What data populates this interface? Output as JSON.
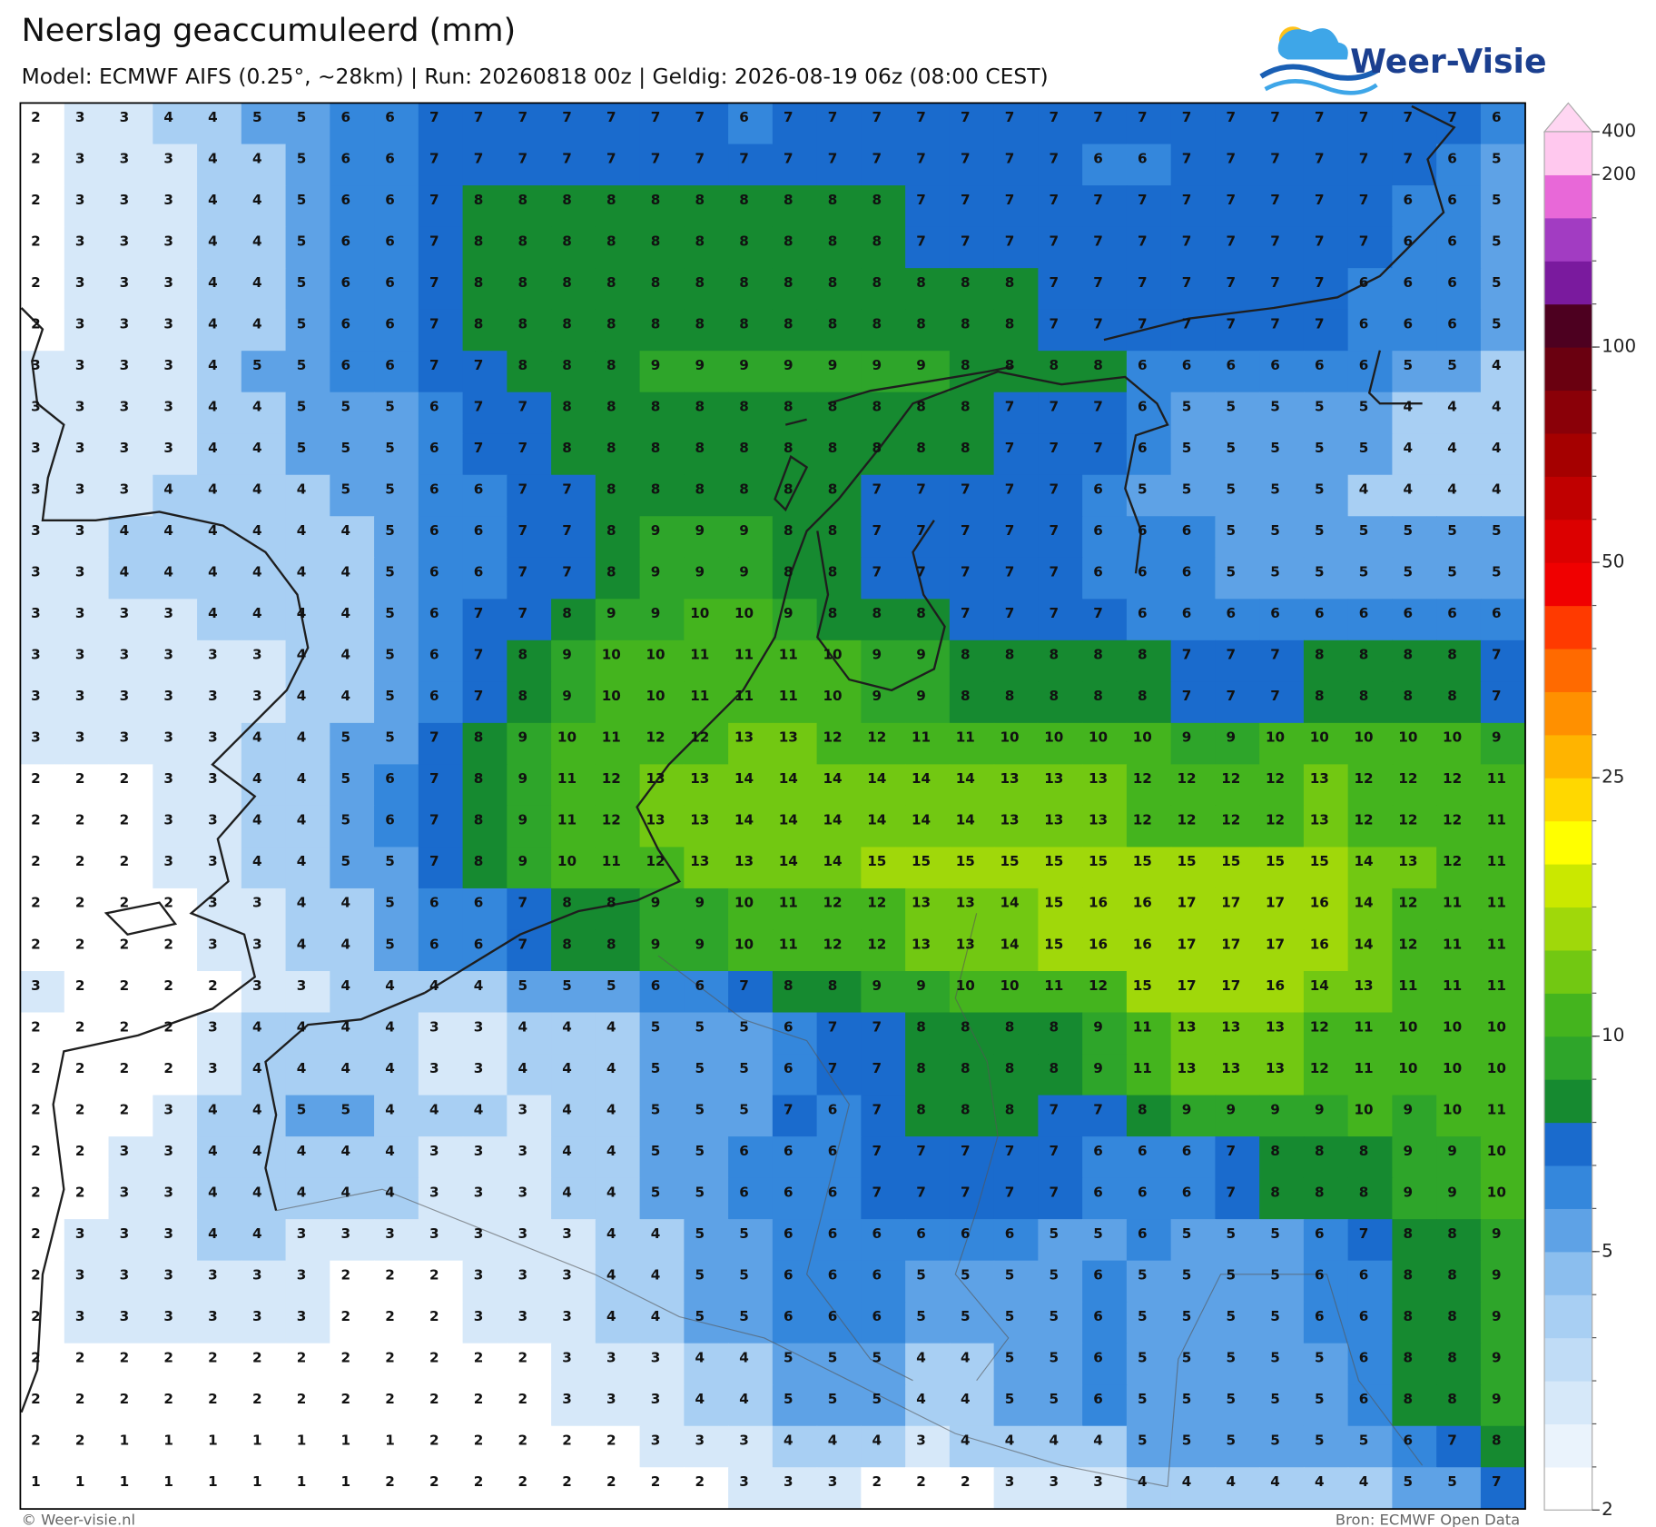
{
  "header": {
    "title": "Neerslag geaccumuleerd (mm)",
    "subtitle": "Model: ECMWF AIFS (0.25°, ~28km)  |  Run: 20260818 00z  |  Geldig: 2026-08-19 06z (08:00 CEST)",
    "logo": "Weer-Visie"
  },
  "map": {
    "grid": [
      [
        2,
        3,
        3,
        4,
        4,
        5,
        5,
        6,
        6,
        7,
        7,
        7,
        7,
        7,
        7,
        7,
        6,
        7,
        7,
        7,
        7,
        7,
        7,
        7,
        7,
        7,
        7,
        7,
        7,
        7,
        7,
        7,
        7,
        6
      ],
      [
        2,
        3,
        3,
        3,
        4,
        4,
        5,
        6,
        6,
        7,
        7,
        7,
        7,
        7,
        7,
        7,
        7,
        7,
        7,
        7,
        7,
        7,
        7,
        7,
        6,
        6,
        7,
        7,
        7,
        7,
        7,
        7,
        6,
        5
      ],
      [
        2,
        3,
        3,
        3,
        4,
        4,
        5,
        6,
        6,
        7,
        8,
        8,
        8,
        8,
        8,
        8,
        8,
        8,
        8,
        8,
        7,
        7,
        7,
        7,
        7,
        7,
        7,
        7,
        7,
        7,
        7,
        6,
        6,
        5
      ],
      [
        2,
        3,
        3,
        3,
        4,
        4,
        5,
        6,
        6,
        7,
        8,
        8,
        8,
        8,
        8,
        8,
        8,
        8,
        8,
        8,
        7,
        7,
        7,
        7,
        7,
        7,
        7,
        7,
        7,
        7,
        7,
        6,
        6,
        5
      ],
      [
        2,
        3,
        3,
        3,
        4,
        4,
        5,
        6,
        6,
        7,
        8,
        8,
        8,
        8,
        8,
        8,
        8,
        8,
        8,
        8,
        8,
        8,
        8,
        7,
        7,
        7,
        7,
        7,
        7,
        7,
        6,
        6,
        6,
        5
      ],
      [
        2,
        3,
        3,
        3,
        4,
        4,
        5,
        6,
        6,
        7,
        8,
        8,
        8,
        8,
        8,
        8,
        8,
        8,
        8,
        8,
        8,
        8,
        8,
        7,
        7,
        7,
        7,
        7,
        7,
        7,
        6,
        6,
        6,
        5
      ],
      [
        3,
        3,
        3,
        3,
        4,
        5,
        5,
        6,
        6,
        7,
        7,
        8,
        8,
        8,
        9,
        9,
        9,
        9,
        9,
        9,
        9,
        8,
        8,
        8,
        8,
        6,
        6,
        6,
        6,
        6,
        6,
        5,
        5,
        4
      ],
      [
        3,
        3,
        3,
        3,
        4,
        4,
        5,
        5,
        5,
        6,
        7,
        7,
        8,
        8,
        8,
        8,
        8,
        8,
        8,
        8,
        8,
        8,
        7,
        7,
        7,
        6,
        5,
        5,
        5,
        5,
        5,
        4,
        4,
        4
      ],
      [
        3,
        3,
        3,
        3,
        4,
        4,
        5,
        5,
        5,
        6,
        7,
        7,
        8,
        8,
        8,
        8,
        8,
        8,
        8,
        8,
        8,
        8,
        7,
        7,
        7,
        6,
        5,
        5,
        5,
        5,
        5,
        4,
        4,
        4
      ],
      [
        3,
        3,
        3,
        4,
        4,
        4,
        4,
        5,
        5,
        6,
        6,
        7,
        7,
        8,
        8,
        8,
        8,
        8,
        8,
        7,
        7,
        7,
        7,
        7,
        6,
        5,
        5,
        5,
        5,
        5,
        4,
        4,
        4,
        4
      ],
      [
        3,
        3,
        4,
        4,
        4,
        4,
        4,
        4,
        5,
        6,
        6,
        7,
        7,
        8,
        9,
        9,
        9,
        8,
        8,
        7,
        7,
        7,
        7,
        7,
        6,
        6,
        6,
        5,
        5,
        5,
        5,
        5,
        5,
        5
      ],
      [
        3,
        3,
        4,
        4,
        4,
        4,
        4,
        4,
        5,
        6,
        6,
        7,
        7,
        8,
        9,
        9,
        9,
        8,
        8,
        7,
        7,
        7,
        7,
        7,
        6,
        6,
        6,
        5,
        5,
        5,
        5,
        5,
        5,
        5
      ],
      [
        3,
        3,
        3,
        3,
        4,
        4,
        4,
        4,
        5,
        6,
        7,
        7,
        8,
        9,
        9,
        10,
        10,
        9,
        8,
        8,
        8,
        7,
        7,
        7,
        7,
        6,
        6,
        6,
        6,
        6,
        6,
        6,
        6,
        6
      ],
      [
        3,
        3,
        3,
        3,
        3,
        3,
        4,
        4,
        5,
        6,
        7,
        8,
        9,
        10,
        10,
        11,
        11,
        11,
        10,
        9,
        9,
        8,
        8,
        8,
        8,
        8,
        7,
        7,
        7,
        8,
        8,
        8,
        8,
        7
      ],
      [
        3,
        3,
        3,
        3,
        3,
        3,
        4,
        4,
        5,
        6,
        7,
        8,
        9,
        10,
        10,
        11,
        11,
        11,
        10,
        9,
        9,
        8,
        8,
        8,
        8,
        8,
        7,
        7,
        7,
        8,
        8,
        8,
        8,
        7
      ],
      [
        3,
        3,
        3,
        3,
        3,
        4,
        4,
        5,
        5,
        7,
        8,
        9,
        10,
        11,
        12,
        12,
        13,
        13,
        12,
        12,
        11,
        11,
        10,
        10,
        10,
        10,
        9,
        9,
        10,
        10,
        10,
        10,
        10,
        9
      ],
      [
        2,
        2,
        2,
        3,
        3,
        4,
        4,
        5,
        6,
        7,
        8,
        9,
        11,
        12,
        13,
        13,
        14,
        14,
        14,
        14,
        14,
        14,
        13,
        13,
        13,
        12,
        12,
        12,
        12,
        13,
        12,
        12,
        12,
        11
      ],
      [
        2,
        2,
        2,
        3,
        3,
        4,
        4,
        5,
        6,
        7,
        8,
        9,
        11,
        12,
        13,
        13,
        14,
        14,
        14,
        14,
        14,
        14,
        13,
        13,
        13,
        12,
        12,
        12,
        12,
        13,
        12,
        12,
        12,
        11
      ],
      [
        2,
        2,
        2,
        3,
        3,
        4,
        4,
        5,
        5,
        7,
        8,
        9,
        10,
        11,
        12,
        13,
        13,
        14,
        14,
        15,
        15,
        15,
        15,
        15,
        15,
        15,
        15,
        15,
        15,
        15,
        14,
        13,
        12,
        11
      ],
      [
        2,
        2,
        2,
        2,
        3,
        3,
        4,
        4,
        5,
        6,
        6,
        7,
        8,
        8,
        9,
        9,
        10,
        11,
        12,
        12,
        13,
        13,
        14,
        15,
        16,
        16,
        17,
        17,
        17,
        16,
        14,
        12,
        11,
        11
      ],
      [
        2,
        2,
        2,
        2,
        3,
        3,
        4,
        4,
        5,
        6,
        6,
        7,
        8,
        8,
        9,
        9,
        10,
        11,
        12,
        12,
        13,
        13,
        14,
        15,
        16,
        16,
        17,
        17,
        17,
        16,
        14,
        12,
        11,
        11
      ],
      [
        3,
        2,
        2,
        2,
        2,
        3,
        3,
        4,
        4,
        4,
        4,
        5,
        5,
        5,
        6,
        6,
        7,
        8,
        8,
        9,
        9,
        10,
        10,
        11,
        12,
        15,
        17,
        17,
        16,
        14,
        13,
        11,
        11,
        11
      ],
      [
        2,
        2,
        2,
        2,
        3,
        4,
        4,
        4,
        4,
        3,
        3,
        4,
        4,
        4,
        5,
        5,
        5,
        6,
        7,
        7,
        8,
        8,
        8,
        8,
        9,
        11,
        13,
        13,
        13,
        12,
        11,
        10,
        10,
        10
      ],
      [
        2,
        2,
        2,
        2,
        3,
        4,
        4,
        4,
        4,
        3,
        3,
        4,
        4,
        4,
        5,
        5,
        5,
        6,
        7,
        7,
        8,
        8,
        8,
        8,
        9,
        11,
        13,
        13,
        13,
        12,
        11,
        10,
        10,
        10
      ],
      [
        2,
        2,
        2,
        3,
        4,
        4,
        5,
        5,
        4,
        4,
        4,
        3,
        4,
        4,
        5,
        5,
        5,
        7,
        6,
        7,
        8,
        8,
        8,
        7,
        7,
        8,
        9,
        9,
        9,
        9,
        10,
        9,
        10,
        11
      ],
      [
        2,
        2,
        3,
        3,
        4,
        4,
        4,
        4,
        4,
        3,
        3,
        3,
        4,
        4,
        5,
        5,
        6,
        6,
        6,
        7,
        7,
        7,
        7,
        7,
        6,
        6,
        6,
        7,
        8,
        8,
        8,
        9,
        9,
        10
      ],
      [
        2,
        2,
        3,
        3,
        4,
        4,
        4,
        4,
        4,
        3,
        3,
        3,
        4,
        4,
        5,
        5,
        6,
        6,
        6,
        7,
        7,
        7,
        7,
        7,
        6,
        6,
        6,
        7,
        8,
        8,
        8,
        9,
        9,
        10
      ],
      [
        2,
        3,
        3,
        3,
        4,
        4,
        3,
        3,
        3,
        3,
        3,
        3,
        3,
        4,
        4,
        5,
        5,
        6,
        6,
        6,
        6,
        6,
        6,
        5,
        5,
        6,
        5,
        5,
        5,
        6,
        7,
        8,
        8,
        9
      ],
      [
        2,
        3,
        3,
        3,
        3,
        3,
        3,
        2,
        2,
        2,
        3,
        3,
        3,
        4,
        4,
        5,
        5,
        6,
        6,
        6,
        5,
        5,
        5,
        5,
        6,
        5,
        5,
        5,
        5,
        6,
        6,
        8,
        8,
        9
      ],
      [
        2,
        3,
        3,
        3,
        3,
        3,
        3,
        2,
        2,
        2,
        3,
        3,
        3,
        4,
        4,
        5,
        5,
        6,
        6,
        6,
        5,
        5,
        5,
        5,
        6,
        5,
        5,
        5,
        5,
        6,
        6,
        8,
        8,
        9
      ],
      [
        2,
        2,
        2,
        2,
        2,
        2,
        2,
        2,
        2,
        2,
        2,
        2,
        3,
        3,
        3,
        4,
        4,
        5,
        5,
        5,
        4,
        4,
        5,
        5,
        6,
        5,
        5,
        5,
        5,
        5,
        6,
        8,
        8,
        9
      ],
      [
        2,
        2,
        2,
        2,
        2,
        2,
        2,
        2,
        2,
        2,
        2,
        2,
        3,
        3,
        3,
        4,
        4,
        5,
        5,
        5,
        4,
        4,
        5,
        5,
        6,
        5,
        5,
        5,
        5,
        5,
        6,
        8,
        8,
        9
      ],
      [
        2,
        2,
        1,
        1,
        1,
        1,
        1,
        1,
        1,
        2,
        2,
        2,
        2,
        2,
        3,
        3,
        3,
        4,
        4,
        4,
        3,
        4,
        4,
        4,
        4,
        5,
        5,
        5,
        5,
        5,
        5,
        6,
        7,
        8
      ],
      [
        1,
        1,
        1,
        1,
        1,
        1,
        1,
        1,
        2,
        2,
        2,
        2,
        2,
        2,
        2,
        2,
        3,
        3,
        3,
        2,
        2,
        2,
        3,
        3,
        3,
        4,
        4,
        4,
        4,
        4,
        4,
        5,
        5,
        7
      ]
    ]
  },
  "colorbar": {
    "ticks": [
      2,
      5,
      10,
      25,
      50,
      100,
      200,
      400
    ],
    "colors": [
      "#ffffff",
      "#eaf3fc",
      "#d6e8f9",
      "#c0dcf6",
      "#a8cff3",
      "#8bbeee",
      "#5ea2e6",
      "#3487dc",
      "#1a6bcd",
      "#168a30",
      "#2ea52a",
      "#44b41e",
      "#72c812",
      "#a0d80a",
      "#cae800",
      "#ffff00",
      "#ffd800",
      "#ffb400",
      "#ff9000",
      "#ff6a00",
      "#ff3a00",
      "#f00000",
      "#dc0000",
      "#c00000",
      "#a50000",
      "#8a0008",
      "#6a0010",
      "#4d0020",
      "#7a1a9e",
      "#a23cc2",
      "#e868d8",
      "#ffc8ee"
    ],
    "extend_color": "#ffd6f2"
  },
  "footer": {
    "left": "© Weer-visie.nl",
    "right": "Bron: ECMWF Open Data"
  }
}
